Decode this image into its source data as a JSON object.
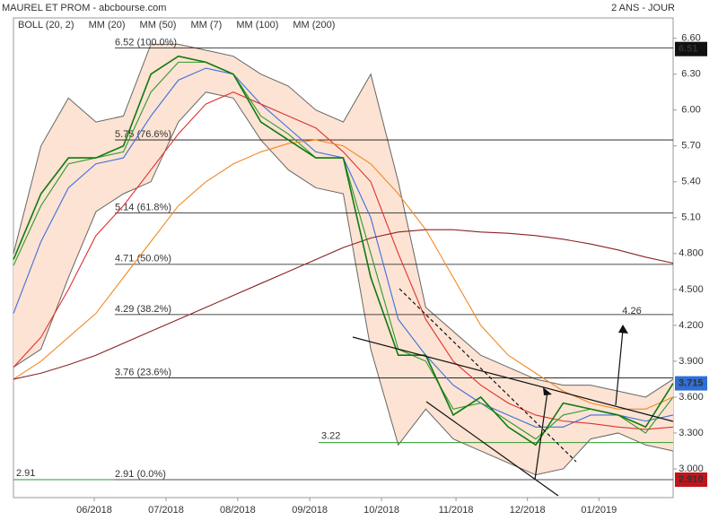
{
  "chart_data": {
    "type": "line",
    "title": "MAUREL ET PROM - abcbourse.com",
    "subtitle": "2 ANS - JOUR",
    "ylim": [
      2.76,
      6.77
    ],
    "yticks": [
      {
        "value": 3,
        "label": "3.000"
      },
      {
        "value": 3.3,
        "label": "3.300"
      },
      {
        "value": 3.6,
        "label": "3.600"
      },
      {
        "value": 3.9,
        "label": "3.900"
      },
      {
        "value": 4.2,
        "label": "4.200"
      },
      {
        "value": 4.5,
        "label": "4.500"
      },
      {
        "value": 4.8,
        "label": "4.800"
      },
      {
        "value": 5.1,
        "label": "5.10"
      },
      {
        "value": 5.4,
        "label": "5.40"
      },
      {
        "value": 5.7,
        "label": "5.70"
      },
      {
        "value": 6,
        "label": "6.00"
      },
      {
        "value": 6.3,
        "label": "6.30"
      },
      {
        "value": 6.6,
        "label": "6.60"
      }
    ],
    "xlim": [
      0,
      24
    ],
    "xticks": [
      {
        "value": 2.94,
        "label": "06/2018"
      },
      {
        "value": 5.55,
        "label": "07/2018"
      },
      {
        "value": 8.16,
        "label": "08/2018"
      },
      {
        "value": 10.78,
        "label": "09/2018"
      },
      {
        "value": 13.39,
        "label": "10/2018"
      },
      {
        "value": 16.1,
        "label": "11/2018"
      },
      {
        "value": 18.7,
        "label": "12/2018"
      },
      {
        "value": 21.3,
        "label": "01/2019"
      }
    ],
    "bollinger": {
      "name": "BOLL (20, 2)",
      "color": "#666666",
      "fill": "#fde3d3",
      "upper": [
        4.8,
        5.7,
        6.1,
        5.9,
        5.95,
        6.55,
        6.55,
        6.5,
        6.45,
        6.3,
        6.2,
        6.0,
        5.9,
        6.3,
        5.4,
        4.35,
        4.15,
        3.95,
        3.85,
        3.75,
        3.7,
        3.7,
        3.65,
        3.6,
        3.75
      ],
      "lower": [
        3.85,
        4.0,
        4.6,
        5.15,
        5.3,
        5.4,
        5.9,
        6.15,
        6.1,
        5.75,
        5.5,
        5.35,
        5.3,
        4.0,
        3.2,
        3.5,
        3.25,
        3.15,
        3.05,
        2.95,
        3.0,
        3.25,
        3.3,
        3.2,
        3.15
      ]
    },
    "series": [
      {
        "name": "MM (20)",
        "color": "#3b6fe0",
        "values": [
          4.3,
          4.9,
          5.35,
          5.55,
          5.6,
          5.95,
          6.25,
          6.35,
          6.3,
          6.05,
          5.85,
          5.65,
          5.6,
          5.1,
          4.25,
          3.95,
          3.7,
          3.55,
          3.45,
          3.35,
          3.35,
          3.45,
          3.45,
          3.4,
          3.45
        ]
      },
      {
        "name": "MM (50)",
        "color": "#e03030",
        "values": [
          3.85,
          4.1,
          4.5,
          4.95,
          5.2,
          5.5,
          5.8,
          6.05,
          6.15,
          6.05,
          5.95,
          5.85,
          5.65,
          5.4,
          4.8,
          4.25,
          3.9,
          3.7,
          3.55,
          3.45,
          3.4,
          3.38,
          3.35,
          3.33,
          3.35
        ]
      },
      {
        "name": "MM (7)",
        "color": "#2e9a2e",
        "values": [
          4.7,
          5.2,
          5.55,
          5.6,
          5.65,
          6.15,
          6.4,
          6.4,
          6.3,
          5.95,
          5.8,
          5.6,
          5.6,
          4.8,
          4.0,
          3.9,
          3.5,
          3.55,
          3.4,
          3.25,
          3.45,
          3.5,
          3.45,
          3.3,
          3.6
        ]
      },
      {
        "name": "MM (100)",
        "color": "#f08a24",
        "values": [
          3.75,
          3.9,
          4.1,
          4.3,
          4.6,
          4.9,
          5.2,
          5.4,
          5.55,
          5.65,
          5.72,
          5.75,
          5.7,
          5.55,
          5.3,
          5.0,
          4.6,
          4.2,
          3.95,
          3.8,
          3.65,
          3.55,
          3.5,
          3.5,
          3.6
        ]
      },
      {
        "name": "MM (200)",
        "color": "#8b2323",
        "values": [
          3.75,
          3.8,
          3.87,
          3.95,
          4.05,
          4.15,
          4.25,
          4.35,
          4.45,
          4.55,
          4.65,
          4.75,
          4.85,
          4.93,
          4.98,
          5.0,
          5.0,
          4.98,
          4.97,
          4.95,
          4.92,
          4.88,
          4.83,
          4.77,
          4.72
        ]
      },
      {
        "color": "#0f7a0f",
        "values": [
          4.75,
          5.3,
          5.6,
          5.6,
          5.7,
          6.3,
          6.45,
          6.4,
          6.3,
          5.9,
          5.75,
          5.6,
          5.6,
          4.6,
          3.95,
          3.95,
          3.45,
          3.6,
          3.35,
          3.2,
          3.55,
          3.5,
          3.45,
          3.35,
          3.715
        ]
      }
    ],
    "levels": [
      {
        "value": 6.52,
        "label": "6.52  (100.0%)"
      },
      {
        "value": 5.75,
        "label": "5.75  (76.6%)"
      },
      {
        "value": 5.14,
        "label": "5.14  (61.8%)"
      },
      {
        "value": 4.71,
        "label": "4.71  (50.0%)"
      },
      {
        "value": 4.29,
        "label": "4.29  (38.2%)"
      },
      {
        "value": 3.76,
        "label": "3.76  (23.6%)"
      },
      {
        "value": 2.91,
        "label": "2.91  (0.0%)"
      }
    ],
    "support": {
      "value": 3.22,
      "label": "3.22"
    },
    "left_level": {
      "value": 2.91,
      "label": "2.91"
    },
    "target": {
      "value": 4.26,
      "label": "4.26"
    },
    "markers": [
      {
        "value": 6.51,
        "label": "6.51",
        "color": "#111111"
      },
      {
        "value": 3.715,
        "label": "3.715",
        "color": "#2f6fd6"
      },
      {
        "value": 2.91,
        "label": "2.910",
        "color": "#c0151b"
      }
    ]
  }
}
